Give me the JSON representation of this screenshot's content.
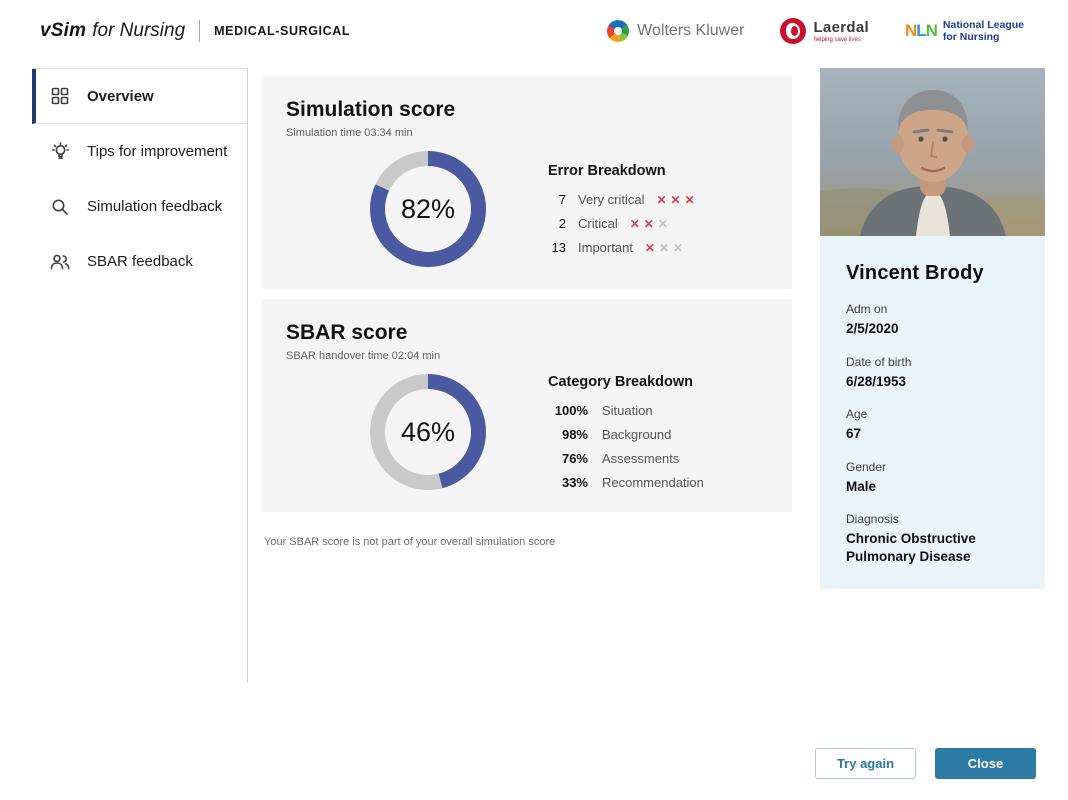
{
  "header": {
    "brand": {
      "vsim": "vSim",
      "for_nursing": "for Nursing",
      "edition": "MEDICAL-SURGICAL"
    },
    "logos": {
      "wolters_kluwer": "Wolters Kluwer",
      "laerdal": "Laerdal",
      "laerdal_tagline": "helping save lives",
      "nln_mark_n1": "N",
      "nln_mark_l": "L",
      "nln_mark_n2": "N",
      "nln_line1": "National League",
      "nln_line2": "for Nursing"
    }
  },
  "sidebar": {
    "items": [
      {
        "label": "Overview",
        "icon": "grid-icon",
        "active": true
      },
      {
        "label": "Tips for improvement",
        "icon": "lightbulb-icon",
        "active": false
      },
      {
        "label": "Simulation feedback",
        "icon": "search-icon",
        "active": false
      },
      {
        "label": "SBAR feedback",
        "icon": "people-icon",
        "active": false
      }
    ]
  },
  "main": {
    "simulation_card": {
      "title": "Simulation score",
      "subtitle": "Simulation time 03:34 min",
      "score_label": "82%",
      "error_breakdown": {
        "title": "Error Breakdown",
        "rows": [
          {
            "count": "7",
            "label": "Very critical",
            "marks": [
              "red",
              "red",
              "red"
            ]
          },
          {
            "count": "2",
            "label": "Critical",
            "marks": [
              "red",
              "red",
              "gray"
            ]
          },
          {
            "count": "13",
            "label": "Important",
            "marks": [
              "red",
              "gray",
              "gray"
            ]
          }
        ]
      }
    },
    "sbar_card": {
      "title": "SBAR score",
      "subtitle": "SBAR handover time 02:04 min",
      "score_label": "46%",
      "category_breakdown": {
        "title": "Category Breakdown",
        "rows": [
          {
            "value": "100%",
            "label": "Situation"
          },
          {
            "value": "98%",
            "label": "Background"
          },
          {
            "value": "76%",
            "label": "Assessments"
          },
          {
            "value": "33%",
            "label": "Recommendation"
          }
        ]
      }
    },
    "footnote": "Your SBAR score is not part of your overall simulation score"
  },
  "chart_data": [
    {
      "type": "donut",
      "title": "Simulation score",
      "value": 82,
      "label": "82%",
      "detail": {
        "Very critical": 7,
        "Critical": 2,
        "Important": 13
      }
    },
    {
      "type": "donut",
      "title": "SBAR score",
      "value": 46,
      "label": "46%",
      "detail": {
        "Situation": 100,
        "Background": 98,
        "Assessments": 76,
        "Recommendation": 33
      }
    }
  ],
  "patient": {
    "name": "Vincent Brody",
    "fields": [
      {
        "label": "Adm on",
        "value": "2/5/2020"
      },
      {
        "label": "Date of birth",
        "value": "6/28/1953"
      },
      {
        "label": "Age",
        "value": "67"
      },
      {
        "label": "Gender",
        "value": "Male"
      },
      {
        "label": "Diagnosis",
        "value": "Chronic Obstructive Pulmonary Disease"
      }
    ]
  },
  "footer": {
    "try_again": "Try again",
    "close": "Close"
  },
  "colors": {
    "accent_blue": "#4a59a0",
    "donut_gray": "#c9c9c9",
    "button_teal": "#2b7ba2",
    "error_red": "#e03a4e",
    "panel_blue": "#e9f4f8"
  }
}
